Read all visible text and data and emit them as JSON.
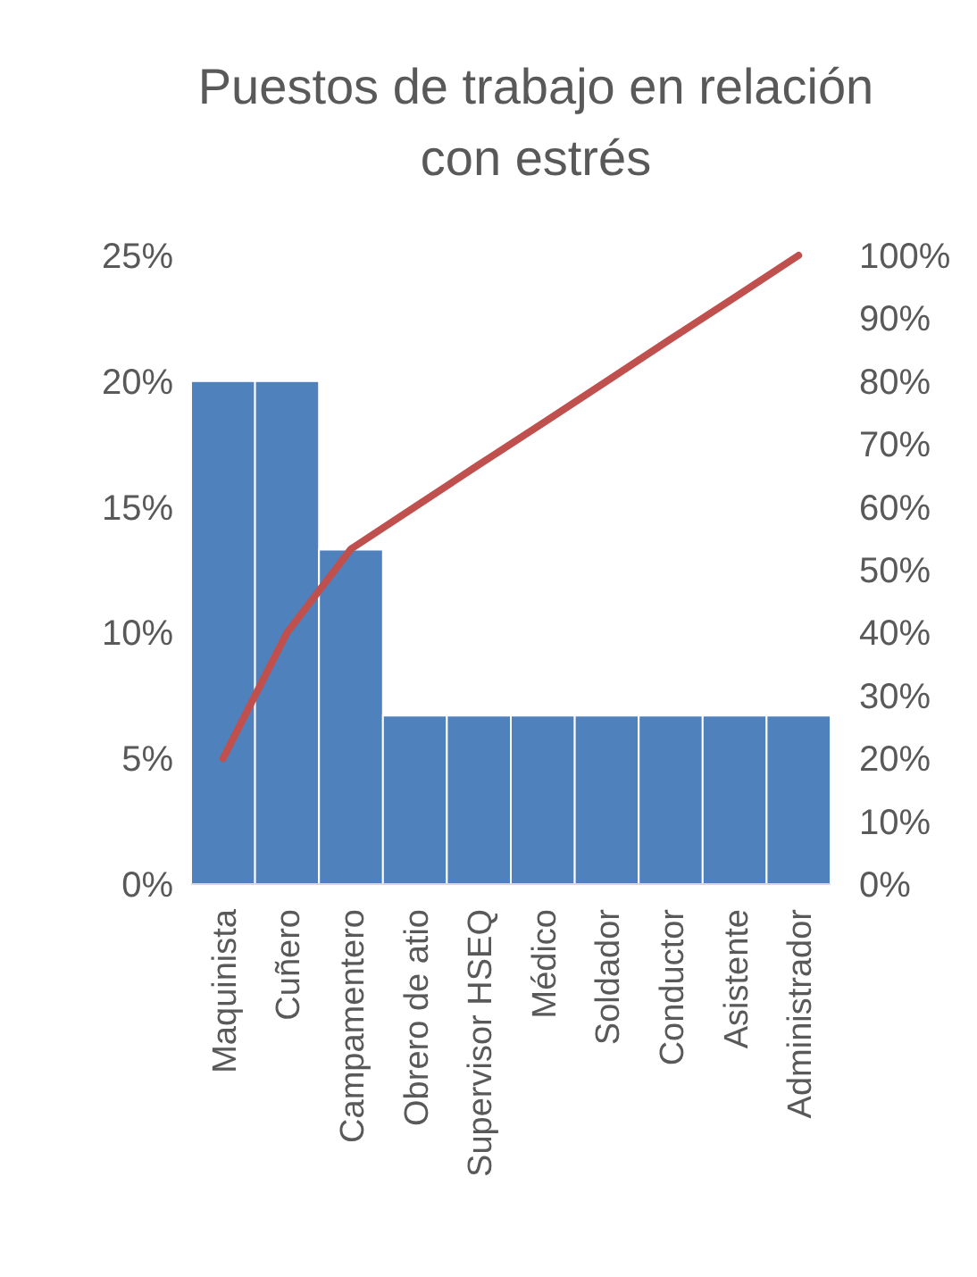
{
  "chart_data": {
    "type": "bar",
    "title": "Puestos de trabajo en relación con estrés",
    "categories": [
      "Maquinista",
      "Cuñero",
      "Campamentero",
      "Obrero de atio",
      "Supervisor HSEQ",
      "Médico",
      "Soldador",
      "Conductor",
      "Asistente",
      "Administrador"
    ],
    "series": [
      {
        "color": "#4f81bd",
        "values": [
          20,
          20,
          13.3,
          6.7,
          6.7,
          6.7,
          6.7,
          6.7,
          6.7,
          6.7
        ]
      },
      {
        "type": "line",
        "axis": "y2",
        "color": "#c0504d",
        "values": [
          20,
          40,
          53.3,
          60,
          66.7,
          73.3,
          80,
          86.7,
          93.3,
          100
        ]
      }
    ],
    "ylim": [
      0,
      25
    ],
    "yticks": [
      {
        "value": 0,
        "label": "0%"
      },
      {
        "value": 5,
        "label": "5%"
      },
      {
        "value": 10,
        "label": "10%"
      },
      {
        "value": 15,
        "label": "15%"
      },
      {
        "value": 20,
        "label": "20%"
      },
      {
        "value": 25,
        "label": "25%"
      }
    ],
    "y2lim": [
      0,
      100
    ],
    "y2ticks": [
      {
        "value": 0,
        "label": "0%"
      },
      {
        "value": 10,
        "label": "10%"
      },
      {
        "value": 20,
        "label": "20%"
      },
      {
        "value": 30,
        "label": "30%"
      },
      {
        "value": 40,
        "label": "40%"
      },
      {
        "value": 50,
        "label": "50%"
      },
      {
        "value": 60,
        "label": "60%"
      },
      {
        "value": 70,
        "label": "70%"
      },
      {
        "value": 80,
        "label": "80%"
      },
      {
        "value": 90,
        "label": "90%"
      },
      {
        "value": 100,
        "label": "100%"
      }
    ],
    "grid": false,
    "marker": "none",
    "line_style": "solid"
  }
}
